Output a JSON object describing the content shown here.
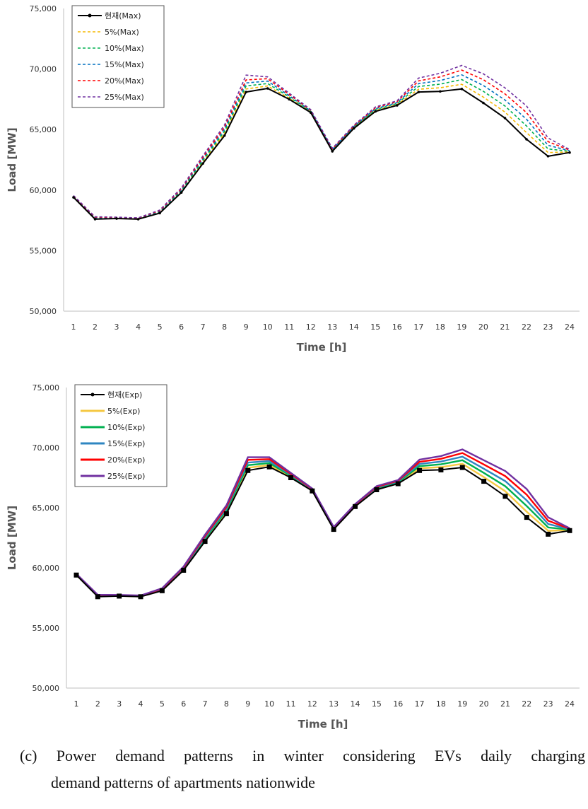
{
  "chart_data": [
    {
      "type": "line",
      "style": "dashed",
      "xlabel": "Time [h]",
      "ylabel": "Load [MW]",
      "xlim": [
        1,
        24
      ],
      "ylim": [
        50000,
        75000
      ],
      "y_ticks": [
        "50,000",
        "55,000",
        "60,000",
        "65,000",
        "70,000",
        "75,000"
      ],
      "x": [
        1,
        2,
        3,
        4,
        5,
        6,
        7,
        8,
        9,
        10,
        11,
        12,
        13,
        14,
        15,
        16,
        17,
        18,
        19,
        20,
        21,
        22,
        23,
        24
      ],
      "legend_position": "top-left",
      "grid": false,
      "series": [
        {
          "name": "현재(Max)",
          "color": "#000000",
          "values": [
            59400,
            57600,
            57650,
            57600,
            58100,
            59800,
            62200,
            64500,
            68100,
            68400,
            67500,
            66400,
            63200,
            65100,
            66500,
            67000,
            68100,
            68150,
            68350,
            67200,
            65950,
            64200,
            62800,
            63100
          ]
        },
        {
          "name": "5%(Max)",
          "color": "#f5b800",
          "values": [
            59430,
            57650,
            57680,
            57630,
            58150,
            59880,
            62330,
            64680,
            68350,
            68600,
            67600,
            66450,
            63250,
            65150,
            66570,
            67070,
            68330,
            68450,
            68740,
            67680,
            66450,
            64750,
            63100,
            63150
          ]
        },
        {
          "name": "10%(Max)",
          "color": "#00b050",
          "values": [
            59460,
            57690,
            57700,
            57650,
            58200,
            59950,
            62450,
            64850,
            68600,
            68800,
            67700,
            66500,
            63300,
            65200,
            66650,
            67150,
            68560,
            68750,
            69130,
            68160,
            66950,
            65300,
            63400,
            63200
          ]
        },
        {
          "name": "15%(Max)",
          "color": "#0070c0",
          "values": [
            59490,
            57730,
            57720,
            57670,
            58250,
            60030,
            62580,
            65030,
            68850,
            69000,
            67800,
            66550,
            63350,
            65260,
            66720,
            67220,
            68790,
            69050,
            69520,
            68640,
            67450,
            65850,
            63700,
            63250
          ]
        },
        {
          "name": "20%(Max)",
          "color": "#ff0000",
          "values": [
            59520,
            57770,
            57740,
            57690,
            58300,
            60100,
            62700,
            65200,
            69100,
            69200,
            67900,
            66600,
            63400,
            65310,
            66800,
            67300,
            69020,
            69350,
            69910,
            69120,
            67950,
            66400,
            64000,
            63300
          ]
        },
        {
          "name": "25%(Max)",
          "color": "#7030a0",
          "values": [
            59550,
            57800,
            57760,
            57710,
            58350,
            60180,
            62830,
            65380,
            69500,
            69350,
            68000,
            66650,
            63450,
            65370,
            66870,
            67370,
            69250,
            69650,
            70300,
            69600,
            68450,
            66950,
            64300,
            63350
          ]
        }
      ]
    },
    {
      "type": "line",
      "style": "solid",
      "xlabel": "Time [h]",
      "ylabel": "Load [MW]",
      "xlim": [
        1,
        24
      ],
      "ylim": [
        50000,
        75000
      ],
      "y_ticks": [
        "50,000",
        "55,000",
        "60,000",
        "65,000",
        "70,000",
        "75,000"
      ],
      "x": [
        1,
        2,
        3,
        4,
        5,
        6,
        7,
        8,
        9,
        10,
        11,
        12,
        13,
        14,
        15,
        16,
        17,
        18,
        19,
        20,
        21,
        22,
        23,
        24
      ],
      "legend_position": "top-left",
      "grid": false,
      "series": [
        {
          "name": "현재(Exp)",
          "color": "#000000",
          "values": [
            59400,
            57600,
            57650,
            57600,
            58100,
            59800,
            62200,
            64500,
            68100,
            68400,
            67500,
            66400,
            63200,
            65100,
            66500,
            67000,
            68100,
            68150,
            68350,
            67200,
            65950,
            64200,
            62800,
            63100
          ]
        },
        {
          "name": "5%(Exp)",
          "color": "#f5c842",
          "values": [
            59420,
            57640,
            57670,
            57620,
            58140,
            59860,
            62310,
            64640,
            68320,
            68560,
            67580,
            66440,
            63240,
            65140,
            66560,
            67060,
            68280,
            68380,
            68650,
            67550,
            66370,
            64670,
            63080,
            63140
          ]
        },
        {
          "name": "10%(Exp)",
          "color": "#00b050",
          "values": [
            59440,
            57670,
            57690,
            57640,
            58180,
            59920,
            62420,
            64780,
            68540,
            68720,
            67660,
            66480,
            63280,
            65180,
            66620,
            67120,
            68460,
            68610,
            68950,
            67900,
            66790,
            65140,
            63360,
            63180
          ]
        },
        {
          "name": "15%(Exp)",
          "color": "#2e86c1",
          "values": [
            59460,
            57700,
            57710,
            57660,
            58220,
            59980,
            62530,
            64920,
            68760,
            68880,
            67740,
            66520,
            63320,
            65220,
            66680,
            67180,
            68640,
            68840,
            69250,
            68250,
            67210,
            65610,
            63640,
            63220
          ]
        },
        {
          "name": "20%(Exp)",
          "color": "#ff0000",
          "values": [
            59480,
            57730,
            57730,
            57680,
            58260,
            60040,
            62640,
            65060,
            68980,
            69040,
            67820,
            66560,
            63360,
            65260,
            66740,
            67240,
            68820,
            69070,
            69550,
            68600,
            67630,
            66080,
            63920,
            63260
          ]
        },
        {
          "name": "25%(Exp)",
          "color": "#7030a0",
          "values": [
            59500,
            57760,
            57750,
            57700,
            58300,
            60100,
            62750,
            65200,
            69200,
            69200,
            67900,
            66600,
            63400,
            65300,
            66800,
            67300,
            69000,
            69300,
            69850,
            68950,
            68050,
            66550,
            64200,
            63300
          ]
        }
      ]
    }
  ],
  "caption": {
    "line1": "(c) Power demand patterns in winter considering EVs daily charging",
    "line2": "demand patterns of apartments nationwide"
  }
}
